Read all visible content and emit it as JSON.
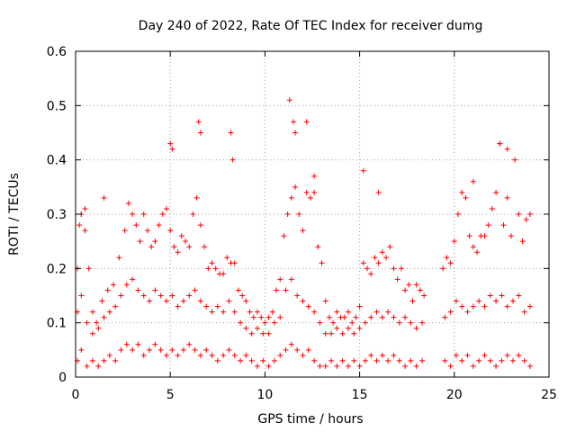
{
  "chart_data": {
    "type": "scatter",
    "title": "Day 240 of 2022, Rate Of TEC Index for receiver dumg",
    "xlabel": "GPS time / hours",
    "ylabel": "ROTI / TECUs",
    "xlim": [
      0,
      25
    ],
    "ylim": [
      0,
      0.6
    ],
    "xticks": [
      "0",
      "5",
      "10",
      "15",
      "20",
      "25"
    ],
    "yticks": [
      "0",
      "0.1",
      "0.2",
      "0.3",
      "0.4",
      "0.5",
      "0.6"
    ],
    "grid": true,
    "marker": "plus",
    "color": "#ff0000",
    "series": [
      {
        "x": [
          0.1,
          0.2,
          0.3,
          0.5,
          0.7,
          0.9,
          1.1,
          1.4,
          1.7,
          2.0,
          2.3,
          2.6,
          2.8,
          3.0,
          3.2,
          3.4,
          3.6,
          3.8,
          4.0,
          4.2,
          4.4,
          4.6,
          4.8,
          5.0,
          5.2,
          5.4,
          5.6,
          5.8,
          6.0,
          6.2,
          6.4,
          6.6,
          6.8,
          7.0,
          7.2,
          7.4,
          7.6,
          7.8,
          8.0,
          8.2,
          8.4,
          8.6,
          8.8,
          9.0,
          9.2,
          9.4,
          9.6,
          9.8,
          10.0,
          10.2,
          10.4,
          10.6,
          10.8,
          11.0,
          11.2,
          11.4,
          11.6,
          11.8,
          12.0,
          12.2,
          12.4,
          12.6,
          12.8,
          13.0,
          13.2,
          13.4,
          13.6,
          13.8,
          14.0,
          14.2,
          14.4,
          14.6,
          14.8,
          15.0,
          15.2,
          15.4,
          15.6,
          15.8,
          16.0,
          16.2,
          16.4,
          16.6,
          16.8,
          17.0,
          17.2,
          17.4,
          17.6,
          17.8,
          18.0,
          18.2,
          18.4,
          19.4,
          19.6,
          19.8,
          20.0,
          20.2,
          20.4,
          20.6,
          20.8,
          21.0,
          21.2,
          21.4,
          21.6,
          21.8,
          22.0,
          22.2,
          22.4,
          22.6,
          22.8,
          23.0,
          23.2,
          23.4,
          23.6,
          23.8,
          24.0,
          5.0,
          5.1,
          6.5,
          6.6,
          8.2,
          8.3,
          11.3,
          11.5,
          11.6,
          12.6,
          15.2,
          16.0,
          22.4,
          22.8,
          0.3,
          0.5,
          12.2,
          21.0,
          1.5
        ],
        "y": [
          0.2,
          0.28,
          0.3,
          0.27,
          0.2,
          0.12,
          0.1,
          0.14,
          0.16,
          0.17,
          0.22,
          0.27,
          0.32,
          0.3,
          0.28,
          0.25,
          0.3,
          0.27,
          0.24,
          0.25,
          0.28,
          0.3,
          0.31,
          0.27,
          0.24,
          0.23,
          0.26,
          0.25,
          0.24,
          0.3,
          0.33,
          0.28,
          0.24,
          0.2,
          0.21,
          0.2,
          0.19,
          0.19,
          0.22,
          0.21,
          0.21,
          0.16,
          0.15,
          0.14,
          0.12,
          0.11,
          0.12,
          0.11,
          0.1,
          0.11,
          0.12,
          0.16,
          0.18,
          0.26,
          0.3,
          0.33,
          0.35,
          0.3,
          0.27,
          0.34,
          0.33,
          0.34,
          0.24,
          0.21,
          0.14,
          0.11,
          0.1,
          0.12,
          0.11,
          0.11,
          0.12,
          0.1,
          0.11,
          0.13,
          0.21,
          0.2,
          0.19,
          0.22,
          0.21,
          0.23,
          0.22,
          0.24,
          0.2,
          0.18,
          0.2,
          0.16,
          0.17,
          0.14,
          0.17,
          0.16,
          0.15,
          0.2,
          0.22,
          0.21,
          0.25,
          0.3,
          0.34,
          0.33,
          0.26,
          0.24,
          0.23,
          0.26,
          0.26,
          0.28,
          0.31,
          0.34,
          0.43,
          0.28,
          0.33,
          0.26,
          0.4,
          0.3,
          0.25,
          0.29,
          0.3,
          0.43,
          0.42,
          0.47,
          0.45,
          0.45,
          0.4,
          0.51,
          0.47,
          0.45,
          0.37,
          0.38,
          0.34,
          0.43,
          0.42,
          0.3,
          0.31,
          0.47,
          0.36,
          0.33
        ]
      },
      {
        "x": [
          0.1,
          0.3,
          0.6,
          0.9,
          1.2,
          1.5,
          1.8,
          2.1,
          2.4,
          2.7,
          3.0,
          3.3,
          3.6,
          3.9,
          4.2,
          4.5,
          4.8,
          5.1,
          5.4,
          5.7,
          6.0,
          6.3,
          6.6,
          6.9,
          7.2,
          7.5,
          7.8,
          8.1,
          8.4,
          8.7,
          9.0,
          9.3,
          9.6,
          9.9,
          10.2,
          10.5,
          10.8,
          11.1,
          11.4,
          11.7,
          12.0,
          12.3,
          12.6,
          12.9,
          13.2,
          13.5,
          13.8,
          14.1,
          14.4,
          14.7,
          15.0,
          15.3,
          15.6,
          15.9,
          16.2,
          16.5,
          16.8,
          17.1,
          17.4,
          17.7,
          18.0,
          18.3,
          19.5,
          19.8,
          20.1,
          20.4,
          20.7,
          21.0,
          21.3,
          21.6,
          21.9,
          22.2,
          22.5,
          22.8,
          23.1,
          23.4,
          23.7,
          24.0
        ],
        "y": [
          0.12,
          0.15,
          0.1,
          0.08,
          0.09,
          0.11,
          0.12,
          0.13,
          0.15,
          0.17,
          0.18,
          0.16,
          0.15,
          0.14,
          0.16,
          0.15,
          0.14,
          0.15,
          0.13,
          0.14,
          0.15,
          0.16,
          0.14,
          0.13,
          0.12,
          0.13,
          0.12,
          0.14,
          0.12,
          0.1,
          0.09,
          0.08,
          0.09,
          0.08,
          0.08,
          0.1,
          0.11,
          0.16,
          0.18,
          0.15,
          0.14,
          0.13,
          0.12,
          0.1,
          0.08,
          0.08,
          0.09,
          0.08,
          0.09,
          0.08,
          0.09,
          0.1,
          0.11,
          0.12,
          0.11,
          0.12,
          0.11,
          0.1,
          0.11,
          0.1,
          0.09,
          0.1,
          0.11,
          0.12,
          0.14,
          0.13,
          0.12,
          0.13,
          0.14,
          0.13,
          0.15,
          0.14,
          0.15,
          0.13,
          0.14,
          0.15,
          0.12,
          0.13
        ]
      },
      {
        "x": [
          0.1,
          0.3,
          0.6,
          0.9,
          1.2,
          1.5,
          1.8,
          2.1,
          2.4,
          2.7,
          3.0,
          3.3,
          3.6,
          3.9,
          4.2,
          4.5,
          4.8,
          5.1,
          5.4,
          5.7,
          6.0,
          6.3,
          6.6,
          6.9,
          7.2,
          7.5,
          7.8,
          8.1,
          8.4,
          8.7,
          9.0,
          9.3,
          9.6,
          9.9,
          10.2,
          10.5,
          10.8,
          11.1,
          11.4,
          11.7,
          12.0,
          12.3,
          12.6,
          12.9,
          13.2,
          13.5,
          13.8,
          14.1,
          14.4,
          14.7,
          15.0,
          15.3,
          15.6,
          15.9,
          16.2,
          16.5,
          16.8,
          17.1,
          17.4,
          17.7,
          18.0,
          18.3,
          19.5,
          19.8,
          20.1,
          20.4,
          20.7,
          21.0,
          21.3,
          21.6,
          21.9,
          22.2,
          22.5,
          22.8,
          23.1,
          23.4,
          23.7,
          24.0
        ],
        "y": [
          0.03,
          0.05,
          0.02,
          0.03,
          0.02,
          0.03,
          0.04,
          0.03,
          0.05,
          0.06,
          0.05,
          0.06,
          0.04,
          0.05,
          0.06,
          0.05,
          0.04,
          0.05,
          0.04,
          0.05,
          0.06,
          0.05,
          0.04,
          0.05,
          0.04,
          0.03,
          0.04,
          0.05,
          0.04,
          0.03,
          0.04,
          0.03,
          0.02,
          0.03,
          0.02,
          0.03,
          0.04,
          0.05,
          0.06,
          0.05,
          0.04,
          0.05,
          0.03,
          0.02,
          0.02,
          0.03,
          0.02,
          0.03,
          0.02,
          0.03,
          0.02,
          0.03,
          0.04,
          0.03,
          0.04,
          0.03,
          0.04,
          0.03,
          0.02,
          0.03,
          0.02,
          0.03,
          0.03,
          0.02,
          0.04,
          0.03,
          0.04,
          0.02,
          0.03,
          0.04,
          0.03,
          0.02,
          0.03,
          0.04,
          0.03,
          0.04,
          0.03,
          0.02
        ]
      }
    ]
  }
}
